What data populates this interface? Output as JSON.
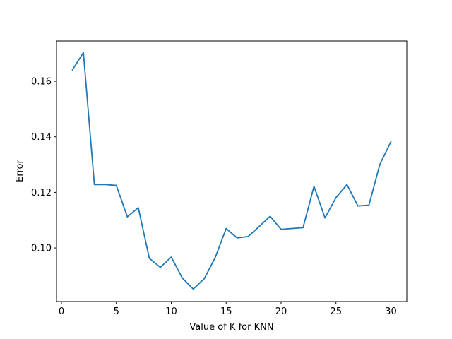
{
  "chart_data": {
    "type": "line",
    "title": "",
    "xlabel": "Value of K for KNN",
    "ylabel": "Error",
    "xlim": [
      -0.45,
      31.45
    ],
    "ylim": [
      0.0807,
      0.1745
    ],
    "x_ticks": [
      0,
      5,
      10,
      15,
      20,
      25,
      30
    ],
    "x_tick_labels": [
      "0",
      "5",
      "10",
      "15",
      "20",
      "25",
      "30"
    ],
    "y_ticks": [
      0.1,
      0.12,
      0.14,
      0.16
    ],
    "y_tick_labels": [
      "0.10",
      "0.12",
      "0.14",
      "0.16"
    ],
    "grid": false,
    "legend": "none",
    "series": [
      {
        "color": "#1f77b4",
        "x": [
          1,
          2,
          3,
          4,
          5,
          6,
          7,
          8,
          9,
          10,
          11,
          12,
          13,
          14,
          15,
          16,
          17,
          18,
          19,
          20,
          21,
          22,
          23,
          24,
          25,
          26,
          27,
          28,
          29,
          30
        ],
        "values": [
          0.1641,
          0.1703,
          0.1228,
          0.1228,
          0.1225,
          0.1112,
          0.1145,
          0.0963,
          0.093,
          0.0967,
          0.0892,
          0.0852,
          0.0889,
          0.0965,
          0.107,
          0.1036,
          0.1041,
          0.1077,
          0.1114,
          0.1067,
          0.107,
          0.1073,
          0.1222,
          0.1108,
          0.1181,
          0.1228,
          0.1151,
          0.1154,
          0.1301,
          0.1382
        ]
      }
    ]
  }
}
